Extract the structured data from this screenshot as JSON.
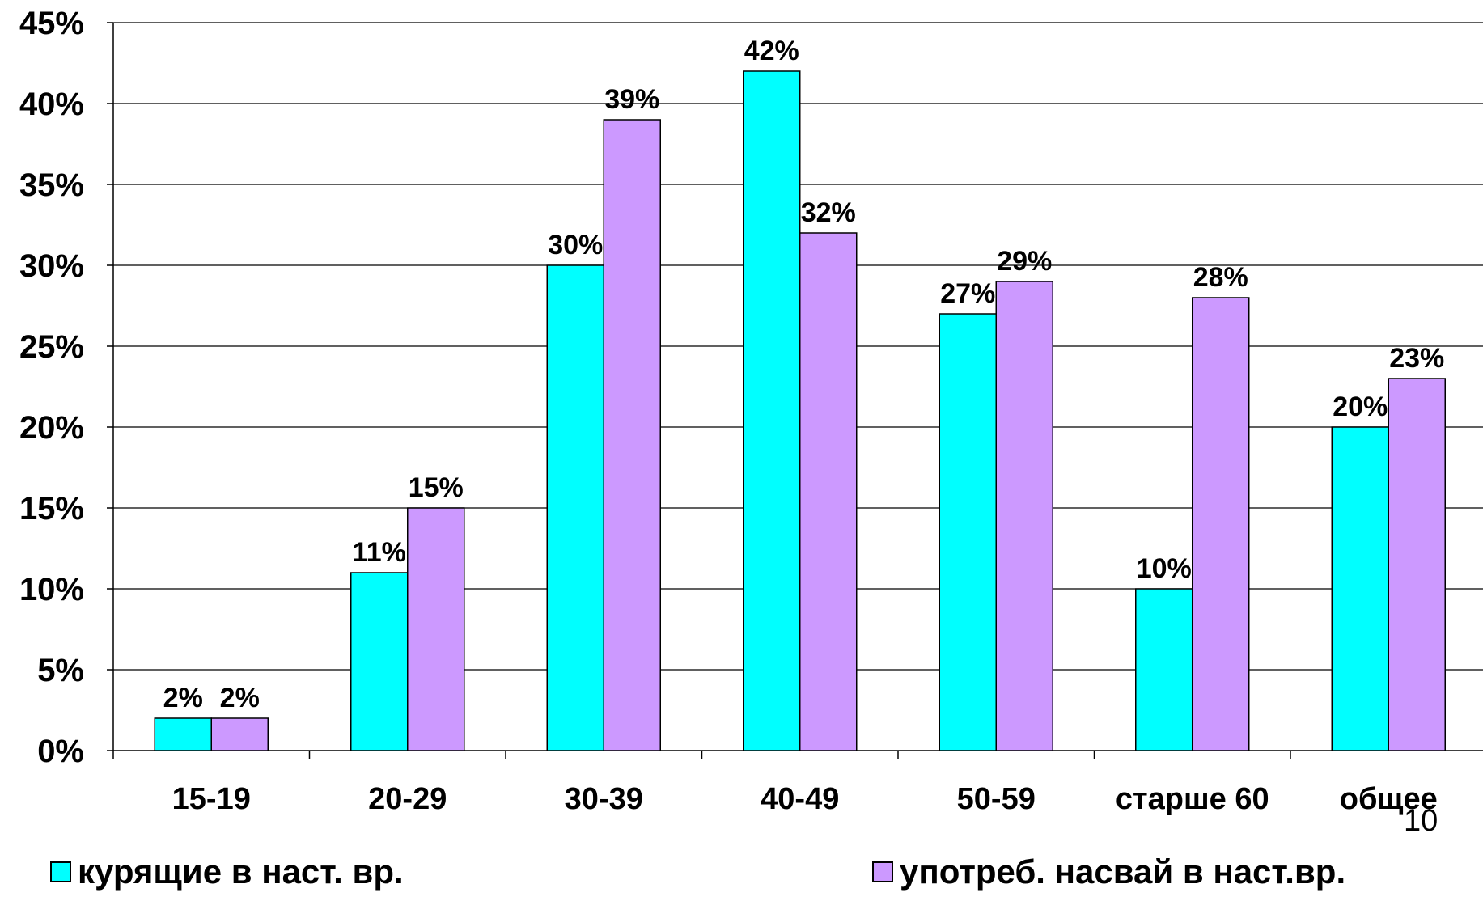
{
  "chart_data": {
    "type": "bar",
    "categories": [
      "15-19",
      "20-29",
      "30-39",
      "40-49",
      "50-59",
      "старше 60",
      "общее"
    ],
    "series": [
      {
        "name": "курящие в наст. вр.",
        "values": [
          2,
          11,
          30,
          42,
          27,
          10,
          20
        ],
        "color": "#00FFFF"
      },
      {
        "name": "употреб. насвай в наст.вр.",
        "values": [
          2,
          15,
          39,
          32,
          29,
          28,
          23
        ],
        "color": "#CC99FF"
      }
    ],
    "data_labels": [
      [
        "2%",
        "11%",
        "30%",
        "42%",
        "27%",
        "10%",
        "20%"
      ],
      [
        "2%",
        "15%",
        "39%",
        "32%",
        "29%",
        "28%",
        "23%"
      ]
    ],
    "yticks": [
      "0%",
      "5%",
      "10%",
      "15%",
      "20%",
      "25%",
      "30%",
      "35%",
      "40%",
      "45%"
    ],
    "ylim": [
      0,
      45
    ],
    "grid": true,
    "legend_position": "bottom"
  },
  "page_number": "10"
}
